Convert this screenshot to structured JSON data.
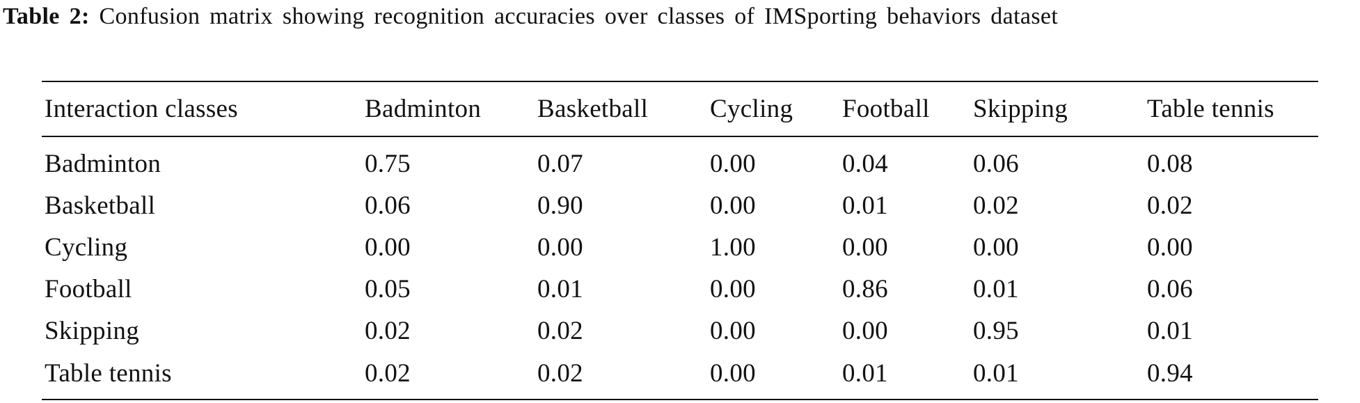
{
  "caption": {
    "label": "Table 2:",
    "text": "Confusion matrix showing recognition accuracies over classes of IMSporting behaviors dataset"
  },
  "table": {
    "headers": [
      "Interaction classes",
      "Badminton",
      "Basketball",
      "Cycling",
      "Football",
      "Skipping",
      "Table tennis"
    ],
    "rows": [
      [
        "Badminton",
        "0.75",
        "0.07",
        "0.00",
        "0.04",
        "0.06",
        "0.08"
      ],
      [
        "Basketball",
        "0.06",
        "0.90",
        "0.00",
        "0.01",
        "0.02",
        "0.02"
      ],
      [
        "Cycling",
        "0.00",
        "0.00",
        "1.00",
        "0.00",
        "0.00",
        "0.00"
      ],
      [
        "Football",
        "0.05",
        "0.01",
        "0.00",
        "0.86",
        "0.01",
        "0.06"
      ],
      [
        "Skipping",
        "0.02",
        "0.02",
        "0.00",
        "0.00",
        "0.95",
        "0.01"
      ],
      [
        "Table tennis",
        "0.02",
        "0.02",
        "0.00",
        "0.01",
        "0.01",
        "0.94"
      ]
    ]
  }
}
